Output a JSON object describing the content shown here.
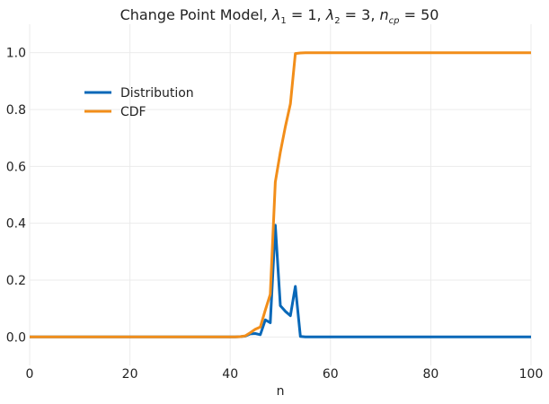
{
  "chart_data": {
    "type": "line",
    "title": "Change Point Model, λ₁ = 1, λ₂ = 3, n_cp = 50",
    "xlabel": "n",
    "ylabel": "",
    "xlim": [
      0,
      100
    ],
    "ylim": [
      -0.1,
      1.1
    ],
    "xticks": [
      0,
      20,
      40,
      60,
      80,
      100
    ],
    "yticks": [
      0.0,
      0.2,
      0.4,
      0.6,
      0.8,
      1.0
    ],
    "xtick_labels": [
      "0",
      "20",
      "40",
      "60",
      "80",
      "100"
    ],
    "ytick_labels": [
      "0.0",
      "0.2",
      "0.4",
      "0.6",
      "0.8",
      "1.0"
    ],
    "grid": true,
    "legend_position": "upper-left",
    "series": [
      {
        "name": "Distribution",
        "color": "#0868b8",
        "points": [
          [
            0,
            0
          ],
          [
            10,
            0
          ],
          [
            20,
            0
          ],
          [
            30,
            0
          ],
          [
            40,
            0
          ],
          [
            41,
            0
          ],
          [
            42,
            0.001
          ],
          [
            43,
            0.003
          ],
          [
            44,
            0.011
          ],
          [
            45,
            0.012
          ],
          [
            46,
            0.008
          ],
          [
            47,
            0.06
          ],
          [
            48,
            0.05
          ],
          [
            49,
            0.393
          ],
          [
            50,
            0.11
          ],
          [
            51,
            0.09
          ],
          [
            52,
            0.075
          ],
          [
            53,
            0.178
          ],
          [
            54,
            0.002
          ],
          [
            55,
            0.0
          ],
          [
            60,
            0
          ],
          [
            70,
            0
          ],
          [
            80,
            0
          ],
          [
            90,
            0
          ],
          [
            100,
            0
          ]
        ]
      },
      {
        "name": "CDF",
        "color": "#f28e1a",
        "points": [
          [
            0,
            0
          ],
          [
            10,
            0
          ],
          [
            20,
            0
          ],
          [
            30,
            0
          ],
          [
            40,
            0
          ],
          [
            41,
            0
          ],
          [
            42,
            0.001
          ],
          [
            43,
            0.004
          ],
          [
            44,
            0.015
          ],
          [
            45,
            0.027
          ],
          [
            46,
            0.035
          ],
          [
            47,
            0.095
          ],
          [
            48,
            0.15
          ],
          [
            49,
            0.545
          ],
          [
            50,
            0.65
          ],
          [
            51,
            0.74
          ],
          [
            52,
            0.82
          ],
          [
            53,
            0.997
          ],
          [
            54,
            0.999
          ],
          [
            55,
            1.0
          ],
          [
            60,
            1
          ],
          [
            70,
            1
          ],
          [
            80,
            1
          ],
          [
            90,
            1
          ],
          [
            100,
            1
          ]
        ]
      }
    ]
  }
}
